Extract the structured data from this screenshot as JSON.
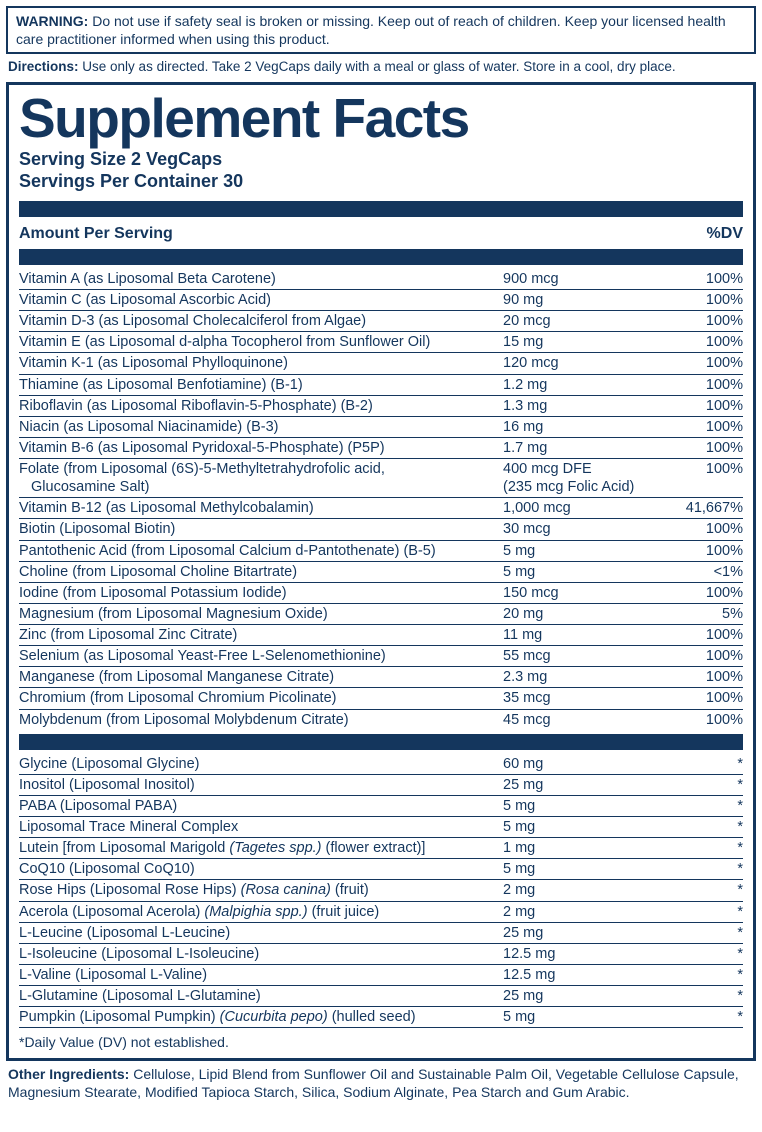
{
  "colors": {
    "ink": "#14365d",
    "bg": "#ffffff"
  },
  "warning": {
    "label": "WARNING:",
    "text": "Do not use if safety seal is broken or missing. Keep out of reach of children. Keep your licensed health care practitioner informed when using this product."
  },
  "directions": {
    "label": "Directions:",
    "text": "Use only as directed. Take 2 VegCaps daily with a meal or glass of water. Store in a cool, dry place."
  },
  "facts": {
    "title": "Supplement Facts",
    "serving_size": "Serving Size 2 VegCaps",
    "servings_per": "Servings Per Container 30",
    "amount_header": "Amount Per Serving",
    "dv_header": "%DV",
    "rows1": [
      {
        "name": "Vitamin A (as Liposomal Beta Carotene)",
        "amt": "900 mcg",
        "dv": "100%"
      },
      {
        "name": "Vitamin C (as Liposomal Ascorbic Acid)",
        "amt": "90 mg",
        "dv": "100%"
      },
      {
        "name": "Vitamin D-3 (as Liposomal Cholecalciferol from Algae)",
        "amt": "20 mcg",
        "dv": "100%"
      },
      {
        "name": "Vitamin E (as Liposomal d-alpha Tocopherol from Sunflower Oil)",
        "amt": "15 mg",
        "dv": "100%"
      },
      {
        "name": "Vitamin K-1 (as Liposomal Phylloquinone)",
        "amt": "120 mcg",
        "dv": "100%"
      },
      {
        "name": "Thiamine (as Liposomal Benfotiamine) (B-1)",
        "amt": "1.2 mg",
        "dv": "100%"
      },
      {
        "name": "Riboflavin (as Liposomal Riboflavin-5-Phosphate) (B-2)",
        "amt": "1.3 mg",
        "dv": "100%"
      },
      {
        "name": "Niacin (as Liposomal Niacinamide) (B-3)",
        "amt": "16 mg",
        "dv": "100%"
      },
      {
        "name": "Vitamin B-6 (as Liposomal Pyridoxal-5-Phosphate) (P5P)",
        "amt": "1.7 mg",
        "dv": "100%"
      },
      {
        "name": "Folate (from Liposomal (6S)-5-Methyltetrahydrofolic acid,",
        "sub": "Glucosamine Salt)",
        "amt": "400 mcg DFE",
        "amt2": "(235 mcg Folic Acid)",
        "dv": "100%"
      },
      {
        "name": "Vitamin B-12 (as Liposomal Methylcobalamin)",
        "amt": "1,000 mcg",
        "dv": "41,667%"
      },
      {
        "name": "Biotin (Liposomal  Biotin)",
        "amt": "30 mcg",
        "dv": "100%"
      },
      {
        "name": "Pantothenic Acid (from Liposomal Calcium d-Pantothenate) (B-5)",
        "amt": "5 mg",
        "dv": "100%"
      },
      {
        "name": "Choline (from Liposomal Choline Bitartrate)",
        "amt": "5 mg",
        "dv": "<1%"
      },
      {
        "name": "Iodine (from Liposomal Potassium Iodide)",
        "amt": "150 mcg",
        "dv": "100%"
      },
      {
        "name": "Magnesium (from Liposomal Magnesium Oxide)",
        "amt": "20 mg",
        "dv": "5%"
      },
      {
        "name": "Zinc (from Liposomal Zinc Citrate)",
        "amt": "11 mg",
        "dv": "100%"
      },
      {
        "name": "Selenium (as Liposomal Yeast-Free L-Selenomethionine)",
        "amt": "55 mcg",
        "dv": "100%"
      },
      {
        "name": "Manganese (from Liposomal Manganese Citrate)",
        "amt": "2.3 mg",
        "dv": "100%"
      },
      {
        "name": "Chromium (from Liposomal Chromium Picolinate)",
        "amt": "35 mcg",
        "dv": "100%"
      },
      {
        "name": "Molybdenum (from Liposomal Molybdenum Citrate)",
        "amt": "45 mcg",
        "dv": "100%"
      }
    ],
    "rows2": [
      {
        "name": "Glycine (Liposomal Glycine)",
        "amt": "60 mg",
        "dv": "*"
      },
      {
        "name": "Inositol (Liposomal Inositol)",
        "amt": "25 mg",
        "dv": "*"
      },
      {
        "name": "PABA (Liposomal PABA)",
        "amt": "5 mg",
        "dv": "*"
      },
      {
        "name": "Liposomal Trace Mineral Complex",
        "amt": "5 mg",
        "dv": "*"
      },
      {
        "name_html": "Lutein [from Liposomal Marigold <em class='sci'>(Tagetes spp.)</em> (flower extract)]",
        "amt": "1 mg",
        "dv": "*"
      },
      {
        "name": "CoQ10 (Liposomal CoQ10)",
        "amt": "5 mg",
        "dv": "*"
      },
      {
        "name_html": "Rose Hips (Liposomal Rose Hips) <em class='sci'>(Rosa canina)</em> (fruit)",
        "amt": "2 mg",
        "dv": "*"
      },
      {
        "name_html": "Acerola (Liposomal Acerola) <em class='sci'>(Malpighia spp.)</em> (fruit juice)",
        "amt": "2 mg",
        "dv": "*"
      },
      {
        "name": "L-Leucine (Liposomal L-Leucine)",
        "amt": "25 mg",
        "dv": "*"
      },
      {
        "name": "L-Isoleucine (Liposomal L-Isoleucine)",
        "amt": "12.5 mg",
        "dv": "*"
      },
      {
        "name": "L-Valine (Liposomal L-Valine)",
        "amt": "12.5 mg",
        "dv": "*"
      },
      {
        "name": "L-Glutamine (Liposomal L-Glutamine)",
        "amt": "25 mg",
        "dv": "*"
      },
      {
        "name_html": "Pumpkin (Liposomal Pumpkin) <em class='sci'>(Cucurbita pepo)</em> (hulled seed)",
        "amt": "5 mg",
        "dv": "*"
      }
    ],
    "footnote": "*Daily Value (DV) not established."
  },
  "other": {
    "label": "Other Ingredients:",
    "text": "Cellulose, Lipid Blend from Sunflower Oil and Sustainable Palm Oil, Vegetable Cellulose Capsule, Magnesium Stearate, Modified Tapioca Starch, Silica, Sodium Alginate, Pea Starch and Gum Arabic."
  }
}
